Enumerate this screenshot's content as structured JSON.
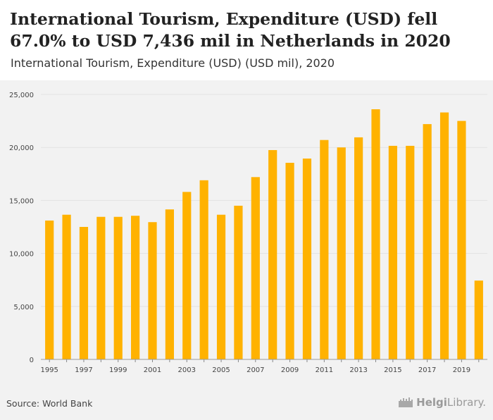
{
  "header": {
    "title": "International Tourism, Expenditure (USD) fell 67.0% to USD 7,436 mil in Netherlands in 2020",
    "subtitle": "International Tourism, Expenditure (USD) (USD mil), 2020"
  },
  "footer": {
    "source": "Source: World Bank",
    "logo_bold": "Helgi",
    "logo_rest": "Library."
  },
  "colors": {
    "bar": "#FFB200",
    "grid": "#e2e2e2",
    "background": "#f2f2f2"
  },
  "chart_data": {
    "type": "bar",
    "title": "International Tourism, Expenditure (USD) (USD mil), 2020",
    "xlabel": "",
    "ylabel": "",
    "ylim": [
      0,
      25000
    ],
    "yticks": [
      0,
      5000,
      10000,
      15000,
      20000,
      25000
    ],
    "ytick_labels": [
      "0",
      "5,000",
      "10,000",
      "15,000",
      "20,000",
      "25,000"
    ],
    "grid": true,
    "categories": [
      "1995",
      "1996",
      "1997",
      "1998",
      "1999",
      "2000",
      "2001",
      "2002",
      "2003",
      "2004",
      "2005",
      "2006",
      "2007",
      "2008",
      "2009",
      "2010",
      "2011",
      "2012",
      "2013",
      "2014",
      "2015",
      "2016",
      "2017",
      "2018",
      "2019",
      "2020"
    ],
    "xtick_labels": [
      "1995",
      "",
      "1997",
      "",
      "1999",
      "",
      "2001",
      "",
      "2003",
      "",
      "2005",
      "",
      "2007",
      "",
      "2009",
      "",
      "2011",
      "",
      "2013",
      "",
      "2015",
      "",
      "2017",
      "",
      "2019",
      ""
    ],
    "values": [
      13100,
      13650,
      12500,
      13450,
      13450,
      13550,
      12950,
      14150,
      15800,
      16900,
      13650,
      14500,
      17200,
      19750,
      18550,
      18950,
      20700,
      20000,
      20950,
      23600,
      20150,
      20150,
      22200,
      23300,
      22500,
      7436
    ]
  }
}
